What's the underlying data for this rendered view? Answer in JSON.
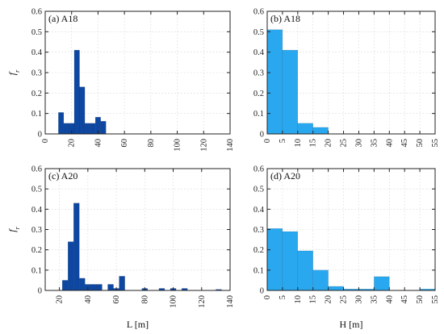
{
  "chart_data": [
    {
      "id": "a",
      "type": "bar",
      "label": "(a) A18",
      "ylabel": "f_r",
      "xlabel": "",
      "xlim": [
        0,
        140
      ],
      "ylim": [
        0,
        0.6
      ],
      "xticks": [
        0,
        20,
        40,
        60,
        80,
        100,
        120,
        140
      ],
      "yticks": [
        0,
        0.1,
        0.2,
        0.3,
        0.4,
        0.5,
        0.6
      ],
      "bar_width": 4,
      "color": "#0d47a1",
      "grid": true,
      "bars": [
        {
          "x": 10,
          "value": 0.105
        },
        {
          "x": 14,
          "value": 0.052
        },
        {
          "x": 18,
          "value": 0.052
        },
        {
          "x": 22,
          "value": 0.41
        },
        {
          "x": 26,
          "value": 0.23
        },
        {
          "x": 30,
          "value": 0.052
        },
        {
          "x": 34,
          "value": 0.052
        },
        {
          "x": 38,
          "value": 0.082
        },
        {
          "x": 42,
          "value": 0.062
        }
      ]
    },
    {
      "id": "b",
      "type": "bar",
      "label": "(b) A18",
      "ylabel": "",
      "xlabel": "",
      "xlim": [
        0,
        55
      ],
      "ylim": [
        0,
        0.6
      ],
      "xticks": [
        0,
        5,
        10,
        15,
        20,
        25,
        30,
        35,
        40,
        45,
        50,
        55
      ],
      "yticks": [
        0,
        0.1,
        0.2,
        0.3,
        0.4,
        0.5,
        0.6
      ],
      "bar_width": 5,
      "color": "#29a8f0",
      "grid": true,
      "bars": [
        {
          "x": 0,
          "value": 0.51
        },
        {
          "x": 5,
          "value": 0.41
        },
        {
          "x": 10,
          "value": 0.052
        },
        {
          "x": 15,
          "value": 0.032
        }
      ]
    },
    {
      "id": "c",
      "type": "bar",
      "label": "(c) A20",
      "ylabel": "f_r",
      "xlabel": "L [m]",
      "xlim": [
        10,
        140
      ],
      "ylim": [
        0,
        0.6
      ],
      "xticks": [
        20,
        40,
        60,
        80,
        100,
        120,
        140
      ],
      "yticks": [
        0,
        0.1,
        0.2,
        0.3,
        0.4,
        0.5,
        0.6
      ],
      "bar_width": 4,
      "color": "#0d47a1",
      "grid": true,
      "bars": [
        {
          "x": 22,
          "value": 0.05
        },
        {
          "x": 26,
          "value": 0.24
        },
        {
          "x": 30,
          "value": 0.43
        },
        {
          "x": 34,
          "value": 0.06
        },
        {
          "x": 38,
          "value": 0.03
        },
        {
          "x": 42,
          "value": 0.03
        },
        {
          "x": 46,
          "value": 0.03
        },
        {
          "x": 54,
          "value": 0.03
        },
        {
          "x": 58,
          "value": 0.01
        },
        {
          "x": 62,
          "value": 0.07
        },
        {
          "x": 78,
          "value": 0.01
        },
        {
          "x": 90,
          "value": 0.01
        },
        {
          "x": 98,
          "value": 0.01
        },
        {
          "x": 106,
          "value": 0.01
        },
        {
          "x": 130,
          "value": 0.005
        }
      ]
    },
    {
      "id": "d",
      "type": "bar",
      "label": "(d) A20",
      "ylabel": "",
      "xlabel": "H [m]",
      "xlim": [
        0,
        55
      ],
      "ylim": [
        0,
        0.6
      ],
      "xticks": [
        0,
        5,
        10,
        15,
        20,
        25,
        30,
        35,
        40,
        45,
        50,
        55
      ],
      "yticks": [
        0,
        0.1,
        0.2,
        0.3,
        0.4,
        0.5,
        0.6
      ],
      "bar_width": 5,
      "color": "#29a8f0",
      "grid": true,
      "bars": [
        {
          "x": 0,
          "value": 0.305
        },
        {
          "x": 5,
          "value": 0.29
        },
        {
          "x": 10,
          "value": 0.195
        },
        {
          "x": 15,
          "value": 0.1
        },
        {
          "x": 20,
          "value": 0.02
        },
        {
          "x": 25,
          "value": 0.007
        },
        {
          "x": 30,
          "value": 0.007
        },
        {
          "x": 35,
          "value": 0.068
        },
        {
          "x": 40,
          "value": 0.0
        },
        {
          "x": 45,
          "value": 0.0
        },
        {
          "x": 50,
          "value": 0.007
        }
      ]
    }
  ]
}
